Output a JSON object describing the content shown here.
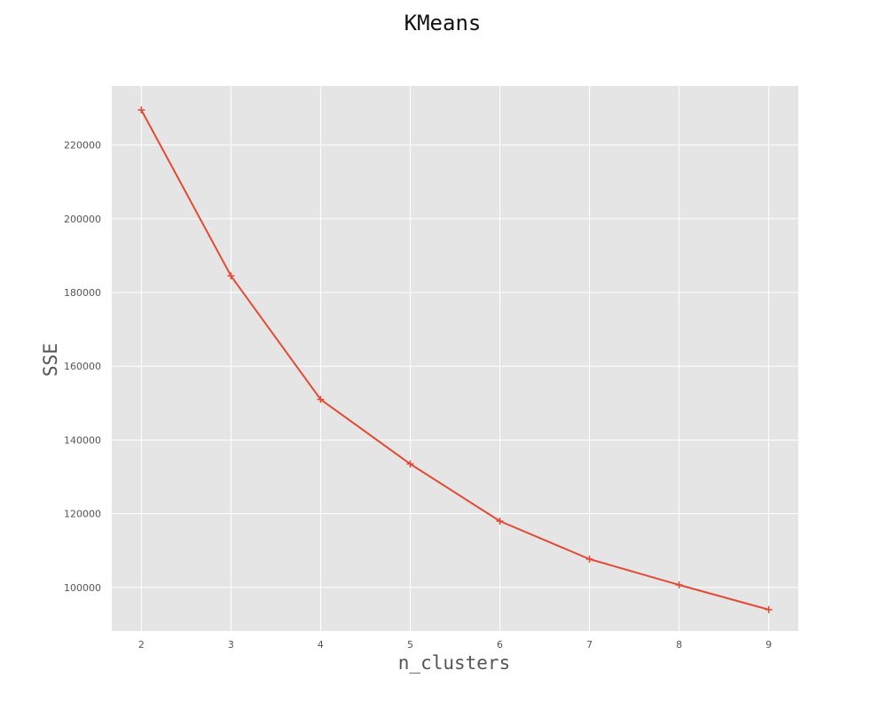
{
  "chart_data": {
    "type": "line",
    "title": "KMeans",
    "xlabel": "n_clusters",
    "ylabel": "SSE",
    "x": [
      2,
      3,
      4,
      5,
      6,
      7,
      8,
      9
    ],
    "series": [
      {
        "values": [
          229500,
          184500,
          151000,
          133500,
          118000,
          107700,
          100700,
          94000
        ],
        "color": "#e24a33",
        "marker": "+"
      }
    ],
    "xticks": [
      2,
      3,
      4,
      5,
      6,
      7,
      8,
      9
    ],
    "yticks": [
      100000,
      120000,
      140000,
      160000,
      180000,
      200000,
      220000
    ],
    "xlim": [
      1.67,
      9.33
    ],
    "ylim": [
      88200,
      236000
    ],
    "grid": true,
    "style": "ggplot",
    "background": "#e5e5e5"
  }
}
